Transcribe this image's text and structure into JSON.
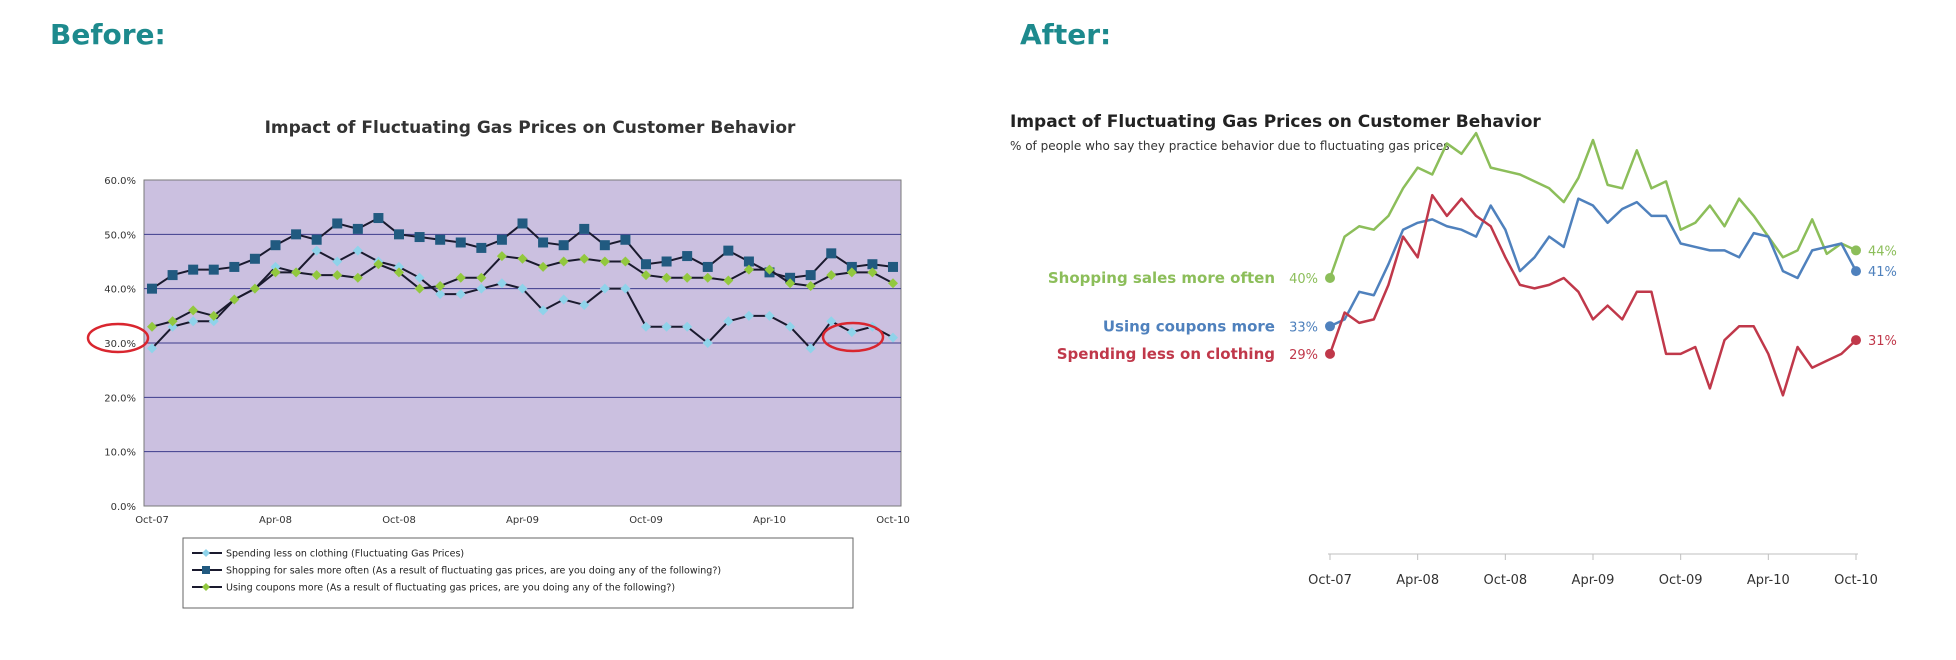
{
  "headings": {
    "before": "Before:",
    "after": "After:"
  },
  "chart_data": [
    {
      "type": "line",
      "title": "Impact of Fluctuating Gas Prices on Customer Behavior",
      "ylim": [
        0,
        60
      ],
      "y_ticks": [
        "0.0%",
        "10.0%",
        "20.0%",
        "30.0%",
        "40.0%",
        "50.0%",
        "60.0%"
      ],
      "x_ticks": [
        "Oct-07",
        "Apr-08",
        "Oct-08",
        "Apr-09",
        "Oct-09",
        "Apr-10",
        "Oct-10"
      ],
      "grid": true,
      "legend_position": "bottom",
      "series": [
        {
          "name": "Spending less on clothing (Fluctuating Gas Prices)",
          "color": "#8fd3ea",
          "marker": "diamond",
          "values": [
            29,
            33,
            34,
            34,
            38,
            40,
            44,
            43,
            47,
            45,
            47,
            45,
            44,
            42,
            39,
            39,
            40,
            41,
            40,
            36,
            38,
            37,
            40,
            40,
            33,
            33,
            33,
            30,
            34,
            35,
            35,
            33,
            29,
            34,
            32,
            33,
            31
          ]
        },
        {
          "name": "Shopping for sales more often (As a result of fluctuating gas prices, are you doing any of the following?)",
          "color": "#215a80",
          "marker": "square",
          "values": [
            40,
            42.5,
            43.5,
            43.5,
            44,
            45.5,
            48,
            50,
            49,
            52,
            51,
            53,
            50,
            49.5,
            49,
            48.5,
            47.5,
            49,
            52,
            48.5,
            48,
            51,
            48,
            49,
            44.5,
            45,
            46,
            44,
            47,
            45,
            43,
            42,
            42.5,
            46.5,
            44,
            44.5,
            44
          ]
        },
        {
          "name": "Using coupons more (As a result of fluctuating gas prices, are you doing any of the following?)",
          "color": "#92c83e",
          "marker": "diamond",
          "values": [
            33,
            34,
            36,
            35,
            38,
            40,
            43,
            43,
            42.5,
            42.5,
            42,
            44.5,
            43,
            40,
            40.5,
            42,
            42,
            46,
            45.5,
            44,
            45,
            45.5,
            45,
            45,
            42.5,
            42,
            42,
            42,
            41.5,
            43.5,
            43.5,
            41,
            40.5,
            42.5,
            43,
            43,
            41
          ]
        }
      ]
    },
    {
      "type": "line",
      "title": "Impact of Fluctuating Gas Prices on Customer Behavior",
      "subtitle": "% of people who say they practice behavior due to fluctuating gas prices",
      "ylim": [
        0,
        60
      ],
      "x_ticks": [
        "Oct-07",
        "Apr-08",
        "Oct-08",
        "Apr-09",
        "Oct-09",
        "Apr-10",
        "Oct-10"
      ],
      "grid": false,
      "series": [
        {
          "name": "Shopping sales more often",
          "color": "#8cbe5a",
          "start_label": "40%",
          "end_label": "44%",
          "values": [
            40,
            46,
            47.5,
            47,
            49,
            53,
            56,
            55,
            59.5,
            58,
            61,
            56,
            55.5,
            55,
            54,
            53,
            51,
            54.5,
            60,
            53.5,
            53,
            58.5,
            53,
            54,
            47,
            48,
            50.5,
            47.5,
            51.5,
            49,
            46,
            43,
            44,
            48.5,
            43.5,
            45,
            44
          ]
        },
        {
          "name": "Using coupons more",
          "color": "#4f81bd",
          "start_label": "33%",
          "end_label": "41%",
          "values": [
            33,
            34,
            38,
            37.5,
            42,
            47,
            48,
            48.5,
            47.5,
            47,
            46,
            50.5,
            47,
            41,
            43,
            46,
            44.5,
            51.5,
            50.5,
            48,
            50,
            51,
            49,
            49,
            45,
            44.5,
            44,
            44,
            43,
            46.5,
            46,
            41,
            40,
            44,
            44.5,
            45,
            41
          ]
        },
        {
          "name": "Spending less on clothing",
          "color": "#c0384a",
          "start_label": "29%",
          "end_label": "31%",
          "values": [
            29,
            35,
            33.5,
            34,
            39,
            46,
            43,
            52,
            49,
            51.5,
            49,
            47.5,
            43,
            39,
            38.5,
            39,
            40,
            38,
            34,
            36,
            34,
            38,
            38,
            29,
            29,
            30,
            24,
            31,
            33,
            33,
            29,
            23,
            30,
            27,
            28,
            29,
            31
          ]
        }
      ]
    }
  ]
}
